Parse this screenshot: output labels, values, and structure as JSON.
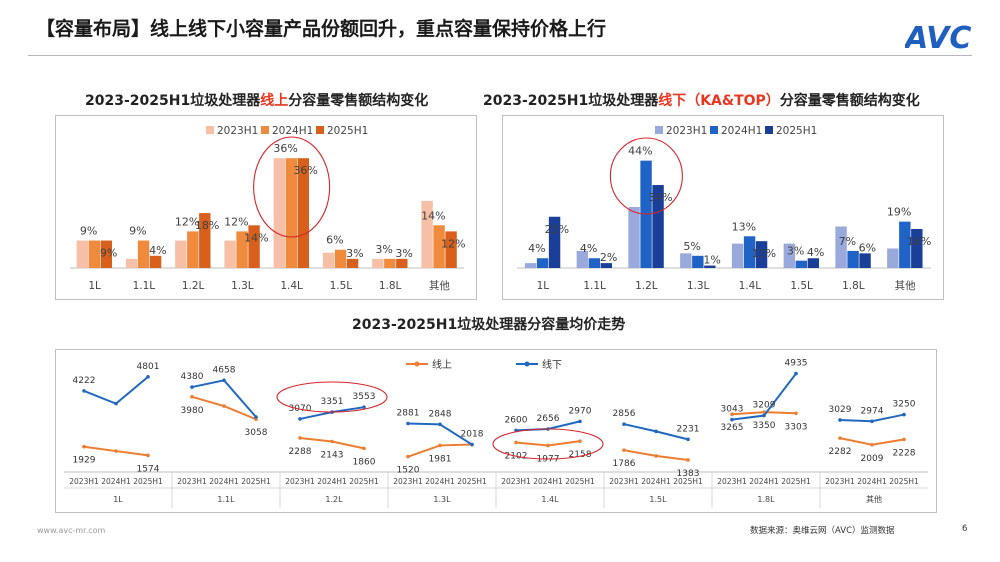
{
  "page": {
    "title": "【容量布局】线上线下小容量产品份额回升，重点容量保持价格上行",
    "footer_url": "www.avc-mr.com",
    "footer_source": "数据来源：奥维云网（AVC）监测数据",
    "page_number": "6",
    "logo_text": "AVC"
  },
  "colors": {
    "h2023_online": "#f7bfa6",
    "h2024_online": "#f08a3c",
    "h2025_online": "#d9601c",
    "h2023_offline": "#9aa9dc",
    "h2024_offline": "#1f63c6",
    "h2025_offline": "#1a3f98",
    "line_online": "#ed7d31",
    "line_offline": "#2168c0",
    "highlight": "#e8361f",
    "circle": "#d7262b"
  },
  "chart_titles": {
    "left_prefix": "2023-2025H1垃圾处理器",
    "left_highlight": "线上",
    "left_suffix": "分容量零售额结构变化",
    "right_prefix": "2023-2025H1垃圾处理器",
    "right_highlight": "线下（KA&TOP）",
    "right_suffix": "分容量零售额结构变化",
    "bottom": "2023-2025H1垃圾处理器分容量均价走势"
  },
  "chart_data": [
    {
      "type": "bar",
      "categories": [
        "1L",
        "1.1L",
        "1.2L",
        "1.3L",
        "1.4L",
        "1.5L",
        "1.8L",
        "其他"
      ],
      "series": [
        {
          "name": "2023H1",
          "values": [
            9,
            3,
            9,
            9,
            36,
            5,
            3,
            22
          ]
        },
        {
          "name": "2024H1",
          "values": [
            9,
            9,
            12,
            12,
            36,
            6,
            3,
            14
          ]
        },
        {
          "name": "2025H1",
          "values": [
            9,
            4,
            18,
            14,
            36,
            3,
            3,
            12
          ]
        }
      ],
      "labels": [
        {
          "category": "1L",
          "text": "9%"
        },
        {
          "category": "1L",
          "text": "9%"
        },
        {
          "category": "1.1L",
          "text": "9%"
        },
        {
          "category": "1.1L",
          "text": "4%"
        },
        {
          "category": "1.2L",
          "text": "12%"
        },
        {
          "category": "1.2L",
          "text": "18%"
        },
        {
          "category": "1.3L",
          "text": "12%"
        },
        {
          "category": "1.3L",
          "text": "14%"
        },
        {
          "category": "1.4L",
          "text": "36%"
        },
        {
          "category": "1.4L",
          "text": "36%"
        },
        {
          "category": "1.5L",
          "text": "6%"
        },
        {
          "category": "1.5L",
          "text": "3%"
        },
        {
          "category": "1.8L",
          "text": "3%"
        },
        {
          "category": "1.8L",
          "text": "3%"
        },
        {
          "category": "其他",
          "text": "14%"
        },
        {
          "category": "其他",
          "text": "12%"
        }
      ],
      "ylim": [
        0,
        40
      ],
      "legend": "top-left",
      "highlight_category": "1.4L"
    },
    {
      "type": "bar",
      "categories": [
        "1L",
        "1.1L",
        "1.2L",
        "1.3L",
        "1.4L",
        "1.5L",
        "1.8L",
        "其他"
      ],
      "series": [
        {
          "name": "2023H1",
          "values": [
            2,
            7,
            25,
            6,
            10,
            10,
            17,
            8
          ]
        },
        {
          "name": "2024H1",
          "values": [
            4,
            4,
            44,
            5,
            13,
            3,
            7,
            19
          ]
        },
        {
          "name": "2025H1",
          "values": [
            21,
            2,
            34,
            1,
            11,
            4,
            6,
            16
          ]
        }
      ],
      "labels": [
        {
          "category": "1L",
          "text": "4%"
        },
        {
          "category": "1L",
          "text": "21%"
        },
        {
          "category": "1.1L",
          "text": "4%"
        },
        {
          "category": "1.1L",
          "text": "2%"
        },
        {
          "category": "1.2L",
          "text": "44%"
        },
        {
          "category": "1.2L",
          "text": "34%"
        },
        {
          "category": "1.3L",
          "text": "5%"
        },
        {
          "category": "1.3L",
          "text": "1%"
        },
        {
          "category": "1.4L",
          "text": "13%"
        },
        {
          "category": "1.4L",
          "text": "11%"
        },
        {
          "category": "1.5L",
          "text": "3%"
        },
        {
          "category": "1.5L",
          "text": "4%"
        },
        {
          "category": "1.8L",
          "text": "7%"
        },
        {
          "category": "1.8L",
          "text": "6%"
        },
        {
          "category": "其他",
          "text": "19%"
        },
        {
          "category": "其他",
          "text": "16%"
        }
      ],
      "ylim": [
        0,
        50
      ],
      "legend": "top-left",
      "highlight_category": "1.2L"
    },
    {
      "type": "line",
      "categories": [
        "1L",
        "1.1L",
        "1.2L",
        "1.3L",
        "1.4L",
        "1.5L",
        "1.8L",
        "其他"
      ],
      "periods": [
        "2023H1",
        "2024H1",
        "2025H1"
      ],
      "series": [
        {
          "name": "线上",
          "values": [
            [
              1929,
              1750,
              1574
            ],
            [
              3980,
              null,
              3058
            ],
            [
              2288,
              2143,
              1860
            ],
            [
              1520,
              1981,
              null
            ],
            [
              2102,
              1977,
              2158
            ],
            [
              1786,
              null,
              1383
            ],
            [
              null,
              null,
              3303
            ],
            [
              2282,
              2009,
              2228
            ]
          ]
        },
        {
          "name": "线下",
          "values": [
            [
              4222,
              null,
              4801
            ],
            [
              4380,
              4658,
              null
            ],
            [
              3070,
              3351,
              3553
            ],
            [
              2881,
              2848,
              2018
            ],
            [
              2600,
              2656,
              2970
            ],
            [
              2856,
              null,
              2231
            ],
            [
              3043,
              3209,
              4935
            ],
            [
              3029,
              2974,
              3250
            ]
          ]
        }
      ],
      "labels": {
        "线上": [
          [
            1929,
            null,
            1574
          ],
          [
            3980,
            null,
            3058
          ],
          [
            2288,
            2143,
            1860
          ],
          [
            1520,
            1981,
            null
          ],
          [
            2102,
            1977,
            2158
          ],
          [
            1786,
            null,
            1383
          ],
          [
            3265,
            3350,
            3303
          ],
          [
            2282,
            2009,
            2228
          ]
        ],
        "线下": [
          [
            4222,
            null,
            4801
          ],
          [
            4380,
            4658,
            null
          ],
          [
            3070,
            3351,
            3553
          ],
          [
            2881,
            2848,
            2018
          ],
          [
            2600,
            2656,
            2970
          ],
          [
            2856,
            null,
            2231
          ],
          [
            3043,
            3209,
            4935
          ],
          [
            3029,
            2974,
            3250
          ]
        ]
      },
      "plot_values": {
        "线上": [
          [
            1929,
            1750,
            1574
          ],
          [
            3980,
            3600,
            3058
          ],
          [
            2288,
            2143,
            1860
          ],
          [
            1520,
            1981,
            2018
          ],
          [
            2102,
            1977,
            2158
          ],
          [
            1786,
            1550,
            1383
          ],
          [
            3265,
            3350,
            3303
          ],
          [
            2282,
            2009,
            2228
          ]
        ],
        "线下": [
          [
            4222,
            3700,
            4801
          ],
          [
            4380,
            4658,
            3150
          ],
          [
            3070,
            3351,
            3553
          ],
          [
            2881,
            2848,
            2018
          ],
          [
            2600,
            2656,
            2970
          ],
          [
            2856,
            2560,
            2231
          ],
          [
            3043,
            3209,
            4935
          ],
          [
            3029,
            2974,
            3250
          ]
        ]
      },
      "legend": "top-center",
      "highlight_categories": [
        "1.2L",
        "1.4L"
      ]
    }
  ]
}
